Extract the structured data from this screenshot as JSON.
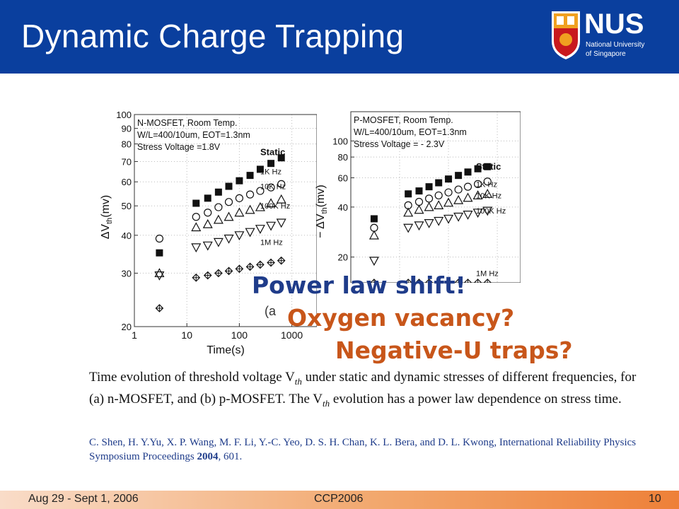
{
  "slide": {
    "title": "Dynamic Charge Trapping",
    "logo": {
      "text": "NUS",
      "line1": "National University",
      "line2": "of Singapore"
    },
    "colors": {
      "header": "#0a3f9e",
      "overlay_blue": "#1f3c8a",
      "overlay_orange": "#c8561a"
    }
  },
  "overlays": {
    "line1": "Power law shift!",
    "line2": "Oxygen vacancy?",
    "line3": "Negative-U traps?"
  },
  "caption": {
    "p1": "Time evolution of threshold voltage V",
    "sub1": "th",
    "p2": " under static and dynamic stresses of different frequencies, for (a) n-MOSFET, and (b) p-MOSFET. The V",
    "sub2": "th",
    "p3": " evolution has a power law dependence on stress time."
  },
  "citation": {
    "authors": "C. Shen, H. Y.Yu, X. P. Wang, M. F. Li, Y.-C. Yeo, D. S. H. Chan, K. L. Bera, and D. L. Kwong, International Reliability Physics Symposium Proceedings ",
    "year": "2004",
    "pages": ", 601."
  },
  "footer": {
    "date": "Aug 29 - Sept 1, 2006",
    "event": "CCP2006",
    "page": "10"
  },
  "chart_data": [
    {
      "type": "scatter",
      "panel_label": "(a",
      "xscale": "log",
      "yscale": "log",
      "xlim": [
        1,
        3000
      ],
      "ylim": [
        20,
        100
      ],
      "xlabel": "Time(s)",
      "ylabel_prefix": "ΔV",
      "ylabel_sub": "th",
      "ylabel_suffix": "(mv)",
      "x_ticks": [
        1,
        10,
        100,
        1000
      ],
      "x_tick_labels": [
        "1",
        "10",
        "100",
        "1000"
      ],
      "y_ticks": [
        20,
        30,
        40,
        50,
        60,
        70,
        80,
        90,
        100
      ],
      "y_tick_labels": [
        "20",
        "30",
        "40",
        "50",
        "60",
        "70",
        "80",
        "90",
        "100"
      ],
      "info": [
        "N-MOSFET, Room Temp.",
        "W/L=400/10um, EOT=1.3nm",
        "Stress Voltage =1.8V"
      ],
      "x": [
        3,
        15,
        25,
        40,
        63,
        100,
        160,
        250,
        400,
        630
      ],
      "series": [
        {
          "name": "Static",
          "marker": "square-filled",
          "values": [
            35,
            51,
            53,
            55.5,
            58,
            60.5,
            63,
            66,
            69,
            72
          ]
        },
        {
          "name": "1K Hz",
          "marker": "circle",
          "values": [
            39,
            46,
            47.5,
            49.5,
            51.5,
            53,
            54.5,
            56,
            57.5,
            59
          ]
        },
        {
          "name": "10K Hz",
          "marker": "triangle-up",
          "values": [
            30,
            42.5,
            43.5,
            45,
            46,
            47.5,
            48.5,
            49.5,
            51,
            52.5
          ]
        },
        {
          "name": "100K Hz",
          "marker": "triangle-down",
          "values": [
            29.5,
            36.5,
            37,
            38,
            39,
            40,
            41,
            42,
            43,
            44
          ]
        },
        {
          "name": "1M Hz",
          "marker": "diamond-cross",
          "values": [
            23,
            29,
            29.5,
            30,
            30.5,
            31,
            31.5,
            32,
            32.5,
            33
          ]
        }
      ],
      "series_label_y": [
        75,
        65,
        58,
        50,
        38
      ]
    },
    {
      "type": "scatter",
      "panel_label": "",
      "xscale": "log",
      "yscale": "log",
      "xlim": [
        1,
        3000
      ],
      "ylim": [
        14,
        150
      ],
      "xlabel": "",
      "ylabel_prefix": "− ΔV",
      "ylabel_sub": "th",
      "ylabel_suffix": "(mv)",
      "x_ticks": [],
      "x_tick_labels": [],
      "y_ticks": [
        20,
        40,
        60,
        80,
        100
      ],
      "y_tick_labels": [
        "20",
        "40",
        "60",
        "80",
        "100"
      ],
      "info": [
        "P-MOSFET, Room Temp.",
        "W/L=400/10um, EOT=1.3nm",
        "Stress Voltage = - 2.3V"
      ],
      "x": [
        3,
        15,
        25,
        40,
        63,
        100,
        160,
        250,
        400,
        630
      ],
      "series": [
        {
          "name": "Static",
          "marker": "square-filled",
          "values": [
            34,
            48,
            50,
            53,
            56,
            59,
            62,
            65,
            68,
            70
          ]
        },
        {
          "name": "1K Hz",
          "marker": "circle",
          "values": [
            30,
            41,
            43,
            45,
            47,
            49,
            51,
            53,
            55,
            57
          ]
        },
        {
          "name": "10K Hz",
          "marker": "triangle-up",
          "values": [
            27,
            37,
            38.5,
            40,
            41,
            42.5,
            44,
            45.5,
            47,
            48
          ]
        },
        {
          "name": "100K Hz",
          "marker": "triangle-down",
          "values": [
            19,
            30,
            31,
            32,
            33,
            34,
            35,
            36,
            37,
            38
          ]
        },
        {
          "name": "1M Hz",
          "marker": "diamond-cross",
          "values": [
            14,
            14,
            14,
            14,
            14,
            14,
            14,
            14,
            14,
            14
          ]
        }
      ],
      "series_label_y": [
        70,
        55,
        47,
        38,
        16
      ]
    }
  ]
}
